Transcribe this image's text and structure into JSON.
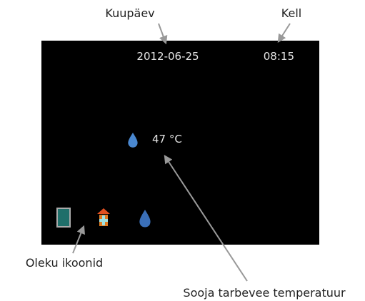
{
  "screen": {
    "date": "2012-06-25",
    "time": "08:15",
    "hot_water_temperature": "47 °C"
  },
  "callouts": [
    "Kuupäev",
    "Kell",
    "Oleku ikoonid",
    "Sooja tarbevee temperatuur"
  ]
}
